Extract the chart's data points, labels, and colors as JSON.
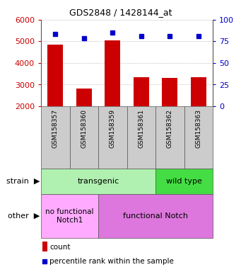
{
  "title": "GDS2848 / 1428144_at",
  "samples": [
    "GSM158357",
    "GSM158360",
    "GSM158359",
    "GSM158361",
    "GSM158362",
    "GSM158363"
  ],
  "counts": [
    4850,
    2820,
    5040,
    3340,
    3310,
    3340
  ],
  "percentiles": [
    84,
    79,
    85,
    81,
    81,
    81
  ],
  "ylim_left": [
    2000,
    6000
  ],
  "ylim_right": [
    0,
    100
  ],
  "yticks_left": [
    2000,
    3000,
    4000,
    5000,
    6000
  ],
  "yticks_right": [
    0,
    25,
    50,
    75,
    100
  ],
  "bar_color": "#cc0000",
  "dot_color": "#0000cc",
  "transgenic_color": "#b0f0b0",
  "wildtype_color": "#44dd44",
  "nofunc_color": "#ffaaff",
  "func_color": "#dd77dd",
  "xticklabel_bg": "#cccccc",
  "tick_label_color_left": "#cc0000",
  "tick_label_color_right": "#0000cc",
  "legend_count_label": "count",
  "legend_pct_label": "percentile rank within the sample"
}
